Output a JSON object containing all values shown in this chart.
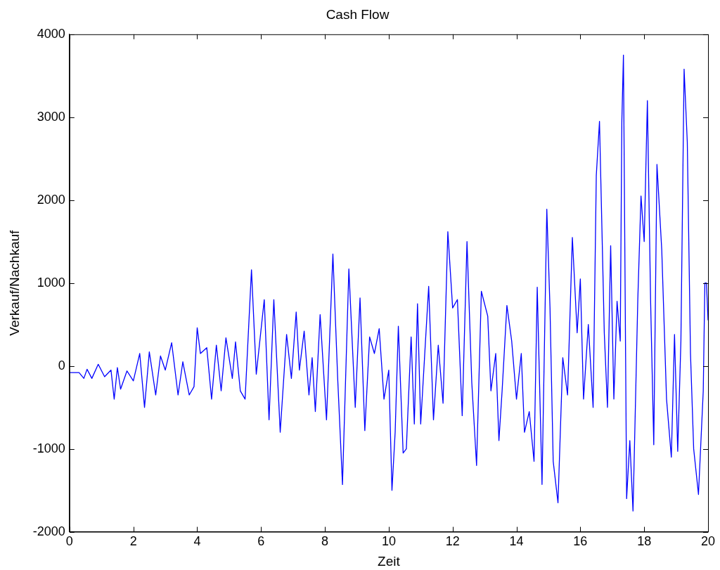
{
  "chart_data": {
    "type": "line",
    "title": "Cash Flow",
    "xlabel": "Zeit",
    "ylabel": "Verkauf/Nachkauf",
    "xlim": [
      0,
      20
    ],
    "xticks": [
      0,
      2,
      4,
      6,
      8,
      10,
      12,
      14,
      16,
      18,
      20
    ],
    "ylim": [
      -2000,
      4000
    ],
    "yticks": [
      -2000,
      -1000,
      0,
      1000,
      2000,
      3000,
      4000
    ],
    "grid": false,
    "legend": false,
    "marker": "none",
    "line_style": "solid",
    "series": [
      {
        "color": "#0000ff",
        "x": [
          0,
          0.3,
          0.45,
          0.55,
          0.7,
          0.9,
          1.1,
          1.3,
          1.4,
          1.5,
          1.6,
          1.8,
          2.0,
          2.2,
          2.35,
          2.5,
          2.7,
          2.85,
          3.0,
          3.2,
          3.4,
          3.55,
          3.75,
          3.9,
          4.0,
          4.1,
          4.3,
          4.45,
          4.6,
          4.75,
          4.9,
          5.1,
          5.2,
          5.35,
          5.5,
          5.7,
          5.85,
          6.1,
          6.25,
          6.4,
          6.6,
          6.8,
          6.95,
          7.1,
          7.2,
          7.35,
          7.5,
          7.6,
          7.7,
          7.85,
          8.05,
          8.15,
          8.25,
          8.4,
          8.55,
          8.75,
          8.95,
          9.1,
          9.25,
          9.4,
          9.55,
          9.7,
          9.85,
          10.0,
          10.1,
          10.2,
          10.3,
          10.45,
          10.55,
          10.7,
          10.8,
          10.9,
          11.0,
          11.15,
          11.25,
          11.4,
          11.55,
          11.7,
          11.85,
          12.0,
          12.15,
          12.3,
          12.45,
          12.6,
          12.75,
          12.9,
          13.1,
          13.2,
          13.35,
          13.45,
          13.55,
          13.7,
          13.85,
          14.0,
          14.15,
          14.25,
          14.4,
          14.55,
          14.65,
          14.8,
          14.95,
          15.05,
          15.15,
          15.3,
          15.45,
          15.6,
          15.75,
          15.9,
          16.0,
          16.1,
          16.25,
          16.4,
          16.5,
          16.6,
          16.75,
          16.85,
          16.95,
          17.05,
          17.15,
          17.25,
          17.3,
          17.35,
          17.45,
          17.55,
          17.65,
          17.8,
          17.9,
          18.0,
          18.1,
          18.2,
          18.3,
          18.4,
          18.55,
          18.7,
          18.85,
          18.95,
          19.05,
          19.15,
          19.25,
          19.35,
          19.45,
          19.55,
          19.7,
          19.85,
          19.9,
          19.95,
          20.0
        ],
        "values": [
          -80,
          -80,
          -150,
          -40,
          -150,
          20,
          -130,
          -50,
          -400,
          -20,
          -280,
          -60,
          -180,
          150,
          -500,
          170,
          -350,
          120,
          -50,
          280,
          -350,
          50,
          -350,
          -250,
          460,
          150,
          220,
          -400,
          250,
          -300,
          340,
          -150,
          290,
          -300,
          -400,
          1160,
          -100,
          800,
          -650,
          800,
          -800,
          380,
          -150,
          650,
          -50,
          420,
          -350,
          100,
          -550,
          620,
          -650,
          350,
          1350,
          -150,
          -1430,
          1170,
          -500,
          820,
          -780,
          350,
          150,
          450,
          -400,
          -50,
          -1500,
          -800,
          480,
          -1050,
          -1000,
          350,
          -700,
          750,
          -700,
          300,
          960,
          -650,
          250,
          -450,
          1620,
          700,
          800,
          -600,
          1500,
          -200,
          -1200,
          900,
          600,
          -300,
          150,
          -900,
          -300,
          730,
          300,
          -400,
          150,
          -800,
          -550,
          -1150,
          950,
          -1430,
          1890,
          700,
          -1150,
          -1650,
          100,
          -350,
          1550,
          400,
          1050,
          -400,
          500,
          -500,
          2300,
          2950,
          400,
          -500,
          1450,
          -400,
          780,
          300,
          2950,
          3750,
          -1600,
          -900,
          -1750,
          800,
          2050,
          1500,
          3200,
          800,
          -950,
          2430,
          1400,
          -400,
          -1100,
          380,
          -1030,
          300,
          3580,
          2700,
          150,
          -1000,
          -1550,
          -300,
          1000,
          1000,
          550
        ]
      }
    ]
  }
}
